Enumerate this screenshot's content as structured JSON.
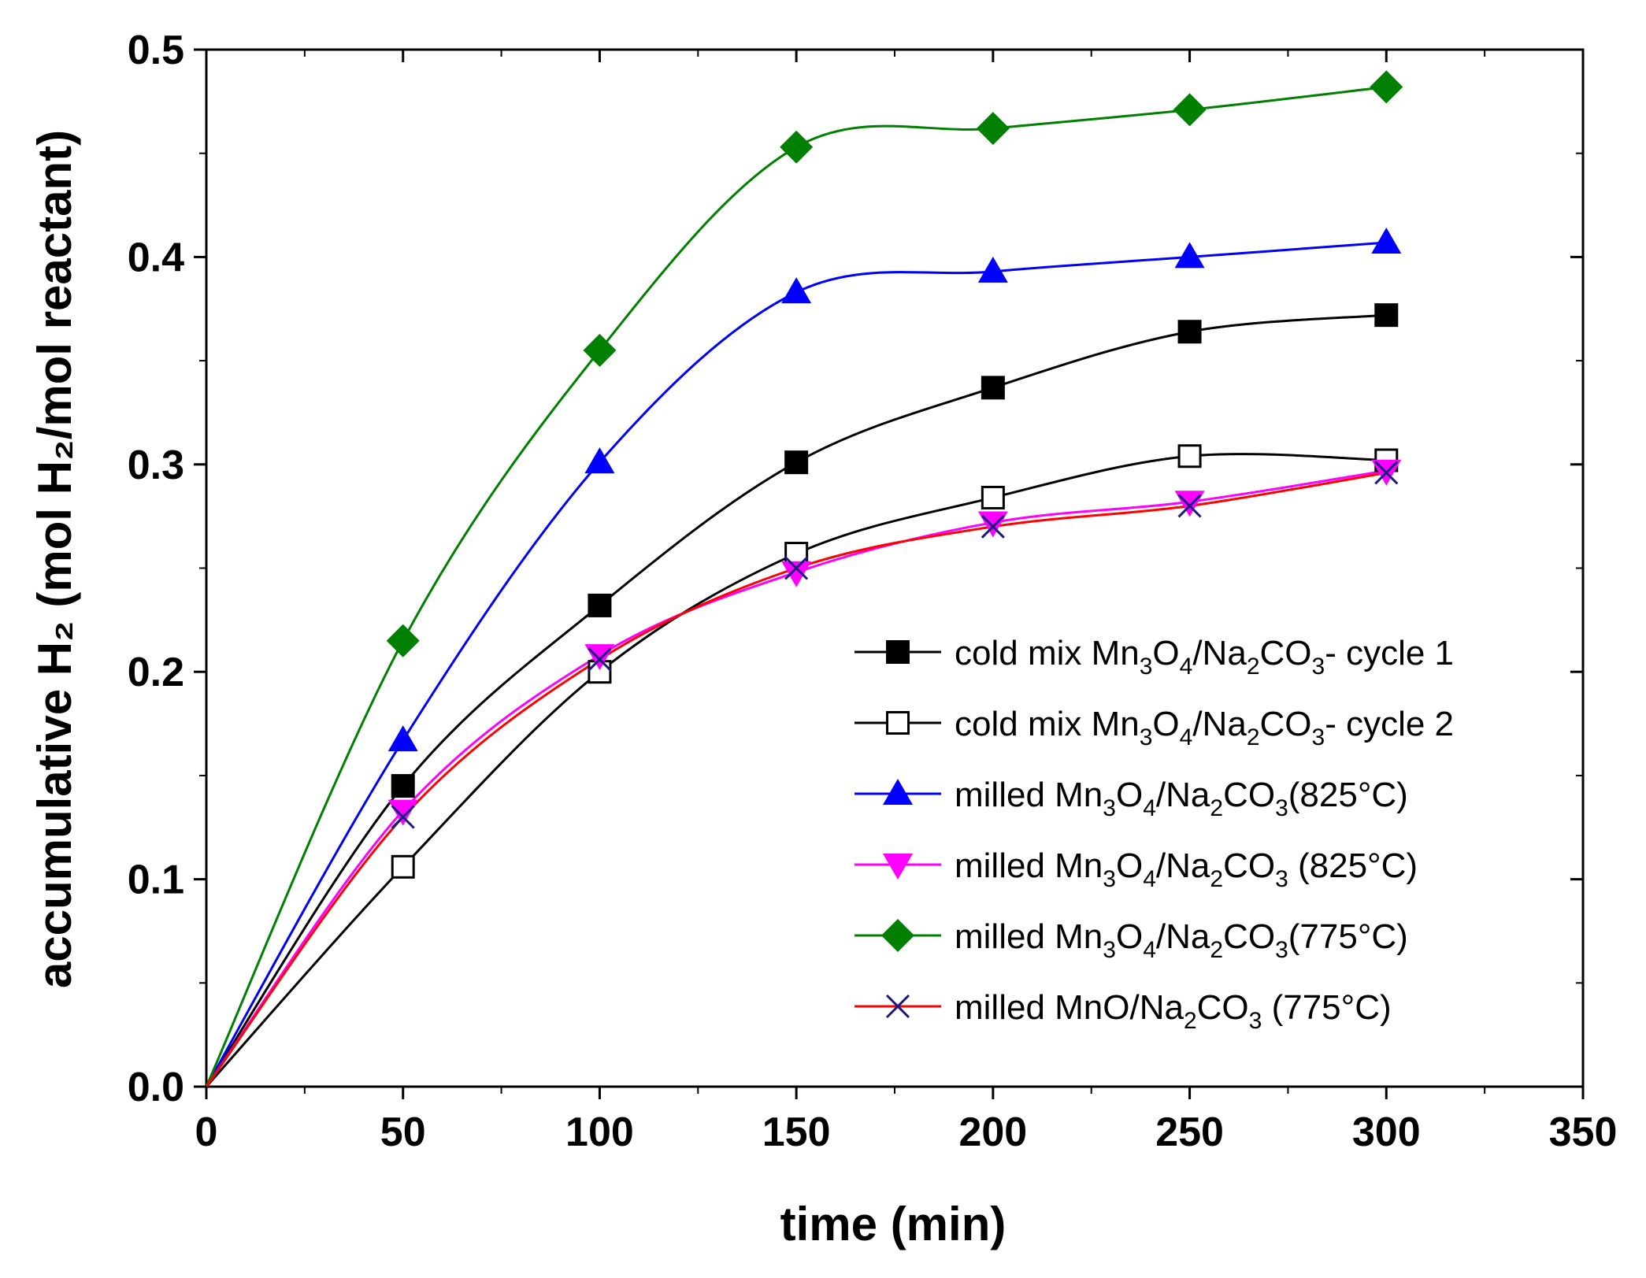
{
  "chart_data": {
    "type": "line",
    "xlabel": "time (min)",
    "ylabel": "accumulative H₂ (mol H₂/mol reactant)",
    "xlim": [
      0,
      350
    ],
    "ylim": [
      0.0,
      0.5
    ],
    "x_ticks": [
      "0",
      "50",
      "100",
      "150",
      "200",
      "250",
      "300",
      "350"
    ],
    "y_ticks": [
      "0.0",
      "0.1",
      "0.2",
      "0.3",
      "0.4",
      "0.5"
    ],
    "grid": false,
    "legend_position": "bottom-right",
    "x": [
      0,
      50,
      100,
      150,
      200,
      250,
      300
    ],
    "series": [
      {
        "name": "cold mix Mn3O4/Na2CO3- cycle 1",
        "label_parts": [
          [
            "cold mix Mn",
            ""
          ],
          [
            "3",
            "sub"
          ],
          [
            "O",
            ""
          ],
          [
            "4",
            "sub"
          ],
          [
            "/Na",
            ""
          ],
          [
            "2",
            "sub"
          ],
          [
            "CO",
            ""
          ],
          [
            "3",
            "sub"
          ],
          [
            "- cycle 1",
            ""
          ]
        ],
        "values": [
          0.0,
          0.145,
          0.232,
          0.301,
          0.337,
          0.364,
          0.372
        ],
        "marker": "square-filled",
        "line_color": "#000000",
        "marker_color": "#000000"
      },
      {
        "name": "cold mix Mn3O4/Na2CO3- cycle 2",
        "label_parts": [
          [
            "cold mix Mn",
            ""
          ],
          [
            "3",
            "sub"
          ],
          [
            "O",
            ""
          ],
          [
            "4",
            "sub"
          ],
          [
            "/Na",
            ""
          ],
          [
            "2",
            "sub"
          ],
          [
            "CO",
            ""
          ],
          [
            "3",
            "sub"
          ],
          [
            "- cycle 2",
            ""
          ]
        ],
        "values": [
          0.0,
          0.106,
          0.2,
          0.257,
          0.284,
          0.304,
          0.302
        ],
        "marker": "square-open",
        "line_color": "#000000",
        "marker_color": "#000000"
      },
      {
        "name": "milled Mn3O4/Na2CO3(825°C)",
        "label_parts": [
          [
            "milled Mn",
            ""
          ],
          [
            "3",
            "sub"
          ],
          [
            "O",
            ""
          ],
          [
            "4",
            "sub"
          ],
          [
            "/Na",
            ""
          ],
          [
            "2",
            "sub"
          ],
          [
            "CO",
            ""
          ],
          [
            "3",
            "sub"
          ],
          [
            "(825°C)",
            ""
          ]
        ],
        "values": [
          0.0,
          0.167,
          0.301,
          0.383,
          0.393,
          0.4,
          0.407
        ],
        "marker": "triangle-up",
        "line_color": "#0000ff",
        "marker_color": "#0000ff"
      },
      {
        "name": "milled Mn3O4/Na2CO3 (825°C)",
        "label_parts": [
          [
            "milled Mn",
            ""
          ],
          [
            "3",
            "sub"
          ],
          [
            "O",
            ""
          ],
          [
            "4",
            "sub"
          ],
          [
            "/Na",
            ""
          ],
          [
            "2",
            "sub"
          ],
          [
            "CO",
            ""
          ],
          [
            "3",
            "sub"
          ],
          [
            " (825°C)",
            ""
          ]
        ],
        "values": [
          0.0,
          0.133,
          0.208,
          0.248,
          0.272,
          0.282,
          0.297
        ],
        "marker": "triangle-down",
        "line_color": "#ff00ff",
        "marker_color": "#ff00ff"
      },
      {
        "name": "milled Mn3O4/Na2CO3(775°C)",
        "label_parts": [
          [
            "milled Mn",
            ""
          ],
          [
            "3",
            "sub"
          ],
          [
            "O",
            ""
          ],
          [
            "4",
            "sub"
          ],
          [
            "/Na",
            ""
          ],
          [
            "2",
            "sub"
          ],
          [
            "CO",
            ""
          ],
          [
            "3",
            "sub"
          ],
          [
            "(775°C)",
            ""
          ]
        ],
        "values": [
          0.0,
          0.215,
          0.355,
          0.453,
          0.462,
          0.471,
          0.482
        ],
        "marker": "diamond",
        "line_color": "#008000",
        "marker_color": "#008000"
      },
      {
        "name": "milled MnO/Na2CO3 (775°C)",
        "label_parts": [
          [
            "milled MnO/Na",
            ""
          ],
          [
            "2",
            "sub"
          ],
          [
            "CO",
            ""
          ],
          [
            "3",
            "sub"
          ],
          [
            " (775°C)",
            ""
          ]
        ],
        "values": [
          0.0,
          0.13,
          0.206,
          0.25,
          0.27,
          0.28,
          0.296
        ],
        "marker": "cross",
        "line_color": "#ff0000",
        "marker_color": "#1a1a80"
      }
    ]
  }
}
